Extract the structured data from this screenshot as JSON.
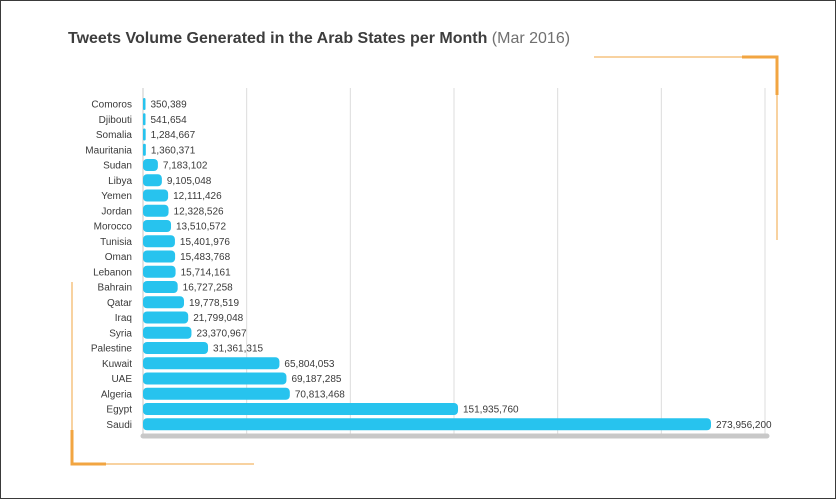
{
  "title": {
    "main": "Tweets Volume Generated in the Arab States per Month",
    "sub": "(Mar 2016)"
  },
  "colors": {
    "bar": "#27c3ee",
    "accent": "#f2a541",
    "grid": "#dcdcdc",
    "axis": "#c8c8c8",
    "text": "#3a3a3a"
  },
  "chart_data": {
    "type": "bar",
    "orientation": "horizontal",
    "title": "Tweets Volume Generated in the Arab States per Month (Mar 2016)",
    "xlabel": "",
    "ylabel": "",
    "xlim": [
      0,
      300000000
    ],
    "grid": true,
    "categories": [
      "Comoros",
      "Djibouti",
      "Somalia",
      "Mauritania",
      "Sudan",
      "Libya",
      "Yemen",
      "Jordan",
      "Morocco",
      "Tunisia",
      "Oman",
      "Lebanon",
      "Bahrain",
      "Qatar",
      "Iraq",
      "Syria",
      "Palestine",
      "Kuwait",
      "UAE",
      "Algeria",
      "Egypt",
      "Saudi"
    ],
    "values": [
      350389,
      541654,
      1284667,
      1360371,
      7183102,
      9105048,
      12111426,
      12328526,
      13510572,
      15401976,
      15483768,
      15714161,
      16727258,
      19778519,
      21799048,
      23370967,
      31361315,
      65804053,
      69187285,
      70813468,
      151935760,
      273956200
    ],
    "value_labels": [
      "350,389",
      "541,654",
      "1,284,667",
      "1,360,371",
      "7,183,102",
      "9,105,048",
      "12,111,426",
      "12,328,526",
      "13,510,572",
      "15,401,976",
      "15,483,768",
      "15,714,161",
      "16,727,258",
      "19,778,519",
      "21,799,048",
      "23,370,967",
      "31,361,315",
      "65,804,053",
      "69,187,285",
      "70,813,468",
      "151,935,760",
      "273,956,200"
    ]
  }
}
